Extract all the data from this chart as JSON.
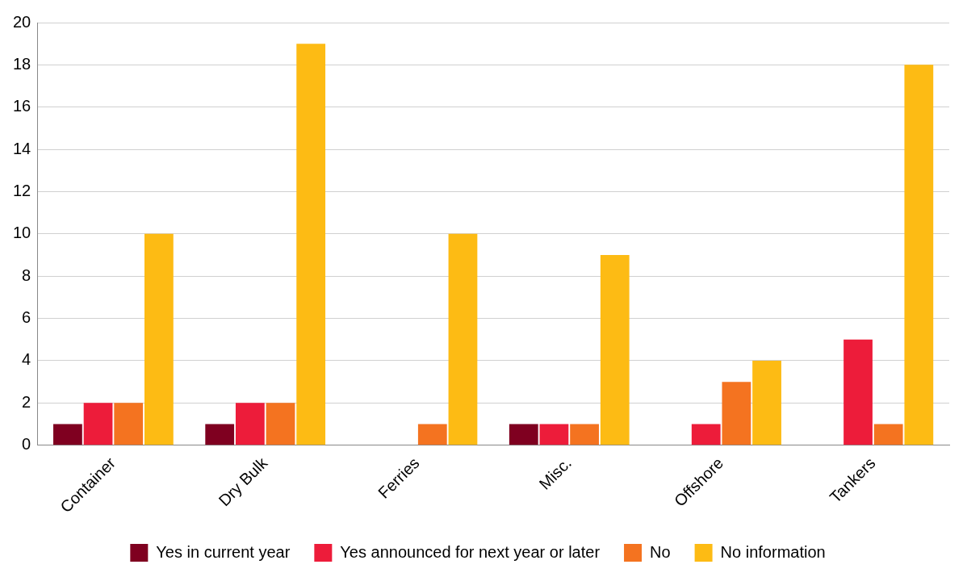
{
  "chart_data": {
    "type": "bar",
    "categories": [
      "Container",
      "Dry Bulk",
      "Ferries",
      "Misc.",
      "Offshore",
      "Tankers"
    ],
    "series": [
      {
        "name": "Yes in current year",
        "color": "#7f0020",
        "values": [
          1,
          1,
          0,
          1,
          0,
          0
        ]
      },
      {
        "name": "Yes announced for next year or later",
        "color": "#ed1c3a",
        "values": [
          2,
          2,
          0,
          1,
          1,
          5
        ]
      },
      {
        "name": "No",
        "color": "#f47320",
        "values": [
          2,
          2,
          1,
          1,
          3,
          1
        ]
      },
      {
        "name": "No information",
        "color": "#fdbb14",
        "values": [
          10,
          19,
          10,
          9,
          4,
          18
        ]
      }
    ],
    "ylim": [
      0,
      20
    ],
    "yticks": [
      0,
      2,
      4,
      6,
      8,
      10,
      12,
      14,
      16,
      18,
      20
    ],
    "grid": "y",
    "legend": "bottom"
  }
}
